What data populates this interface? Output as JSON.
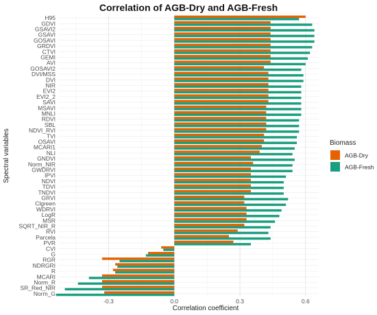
{
  "chart_data": {
    "type": "bar",
    "orientation": "horizontal",
    "title": "Correlation of AGB-Dry and AGB-Fresh",
    "xlabel": "Correlation coefficient",
    "ylabel": "Spectral variables",
    "xlim": [
      -0.53,
      0.66
    ],
    "xticks": [
      -0.3,
      0.0,
      0.3,
      0.6
    ],
    "xtick_labels": [
      "-0.3",
      "0.0",
      "0.3",
      "0.6"
    ],
    "grid": true,
    "legend": {
      "title": "Biomass",
      "position": "right"
    },
    "categories": [
      "H95",
      "GDVI",
      "GSAVI2",
      "GSAVI",
      "GOSAVI",
      "GRDVI",
      "CTVI",
      "GEMI",
      "AVI",
      "GOSAVI2",
      "DVI/MSS",
      "DVI",
      "NIR",
      "EVI2",
      "EVI2_2",
      "SAVI",
      "MSAVI",
      "MNLI",
      "RDVI",
      "SBL",
      "NDVI_RVI",
      "TVI",
      "OSAVI",
      "MCARI1",
      "NLI",
      "GNDVI",
      "Norm_NIR",
      "GWDRVI",
      "IPVI",
      "NDVI",
      "TDVI",
      "TNDVI",
      "GRVI",
      "Clgreen",
      "WDRVI",
      "LogR",
      "MSR",
      "SQRT_NIR_R",
      "RVI",
      "Parcela",
      "PVR",
      "CVI",
      "G",
      "RGR",
      "NDRGRI",
      "R",
      "MCARI",
      "Norm_R",
      "SR_Red_NIR",
      "Norm_G"
    ],
    "series": [
      {
        "name": "AGB-Dry",
        "color": "#E66100",
        "values": [
          0.6,
          0.44,
          0.44,
          0.44,
          0.44,
          0.44,
          0.44,
          0.44,
          0.44,
          0.41,
          0.43,
          0.43,
          0.43,
          0.43,
          0.43,
          0.43,
          0.42,
          0.42,
          0.42,
          0.42,
          0.42,
          0.41,
          0.41,
          0.4,
          0.39,
          0.35,
          0.36,
          0.35,
          0.35,
          0.35,
          0.35,
          0.35,
          0.32,
          0.32,
          0.33,
          0.33,
          0.33,
          0.32,
          0.29,
          0.25,
          0.27,
          -0.06,
          -0.12,
          -0.33,
          -0.27,
          -0.28,
          -0.33,
          -0.33,
          -0.33,
          -0.32
        ]
      },
      {
        "name": "AGB-Fresh",
        "color": "#1A9E80",
        "values": [
          0.57,
          0.63,
          0.64,
          0.64,
          0.64,
          0.63,
          0.62,
          0.61,
          0.6,
          0.58,
          0.59,
          0.59,
          0.58,
          0.58,
          0.58,
          0.58,
          0.58,
          0.58,
          0.57,
          0.57,
          0.57,
          0.56,
          0.56,
          0.55,
          0.54,
          0.55,
          0.54,
          0.54,
          0.51,
          0.5,
          0.5,
          0.5,
          0.52,
          0.51,
          0.49,
          0.48,
          0.46,
          0.44,
          0.43,
          0.44,
          0.35,
          -0.05,
          -0.13,
          -0.25,
          -0.26,
          -0.27,
          -0.39,
          -0.44,
          -0.5,
          -0.54
        ]
      }
    ]
  }
}
